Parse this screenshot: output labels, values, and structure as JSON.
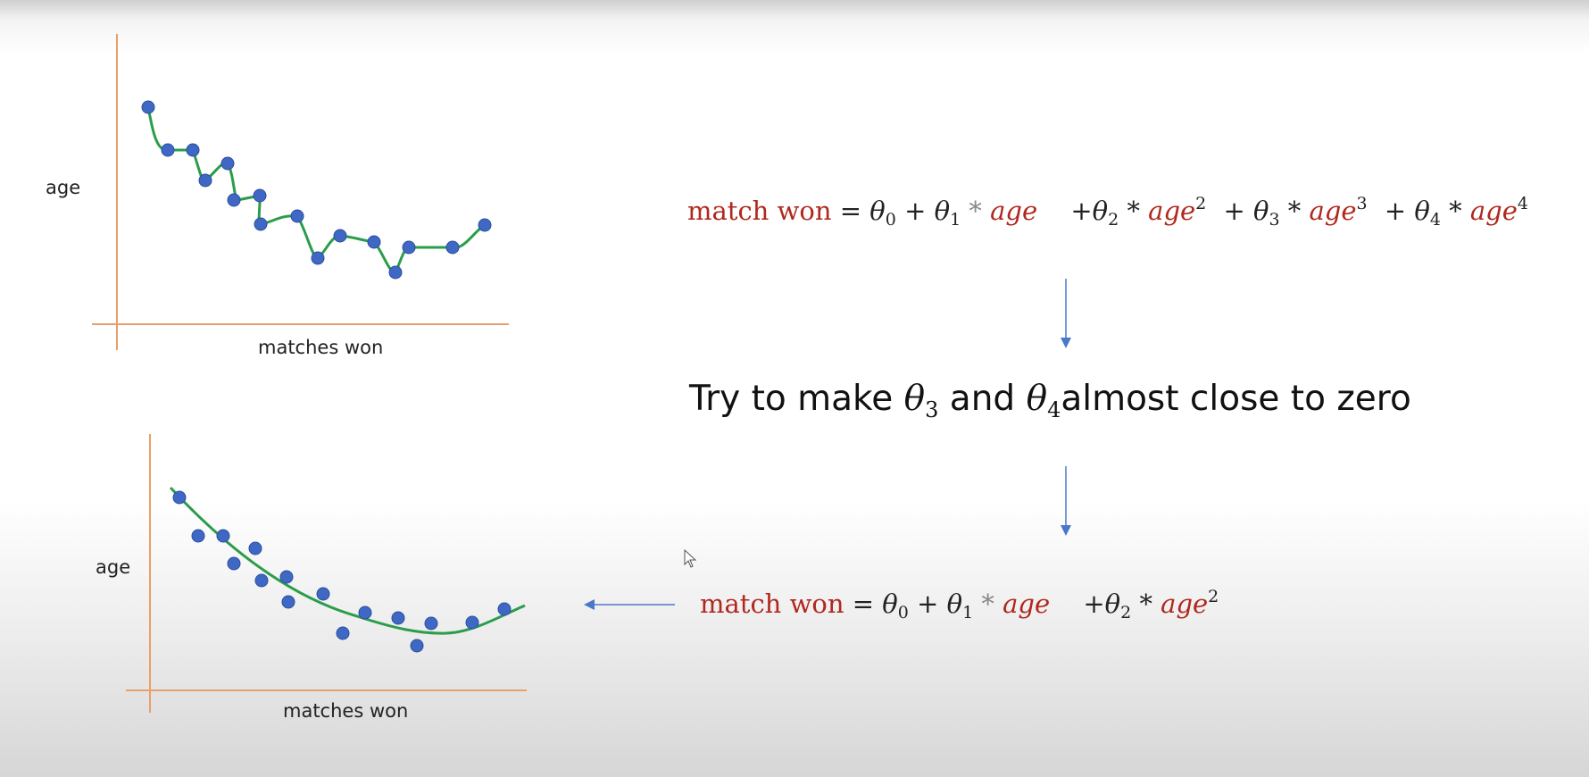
{
  "top_chart": {
    "ylabel": "age",
    "xlabel": "matches won"
  },
  "bottom_chart": {
    "ylabel": "age",
    "xlabel": "matches won"
  },
  "equation_top": {
    "lhs": "match won",
    "eq": "=",
    "theta": "θ",
    "age": "age",
    "plus": "+",
    "times": "*",
    "sub0": "0",
    "sub1": "1",
    "sub2": "2",
    "sub3": "3",
    "sub4": "4",
    "pow2": "2",
    "pow3": "3",
    "pow4": "4"
  },
  "middle_text": {
    "part1": "Try to make ",
    "theta": "θ",
    "sub3": "3",
    "and": " and ",
    "sub4": "4",
    "part2": "almost close to zero"
  },
  "equation_bottom": {
    "lhs": "match won",
    "eq": "=",
    "theta": "θ",
    "age": "age",
    "plus": "+",
    "times": "*",
    "sub0": "0",
    "sub1": "1",
    "sub2": "2",
    "pow2": "2"
  },
  "colors": {
    "axis": "#e8a06a",
    "point": "#3f68c4",
    "curve": "#2a9d4a",
    "arrow": "#4a78c8",
    "red_text": "#b0281e"
  }
}
